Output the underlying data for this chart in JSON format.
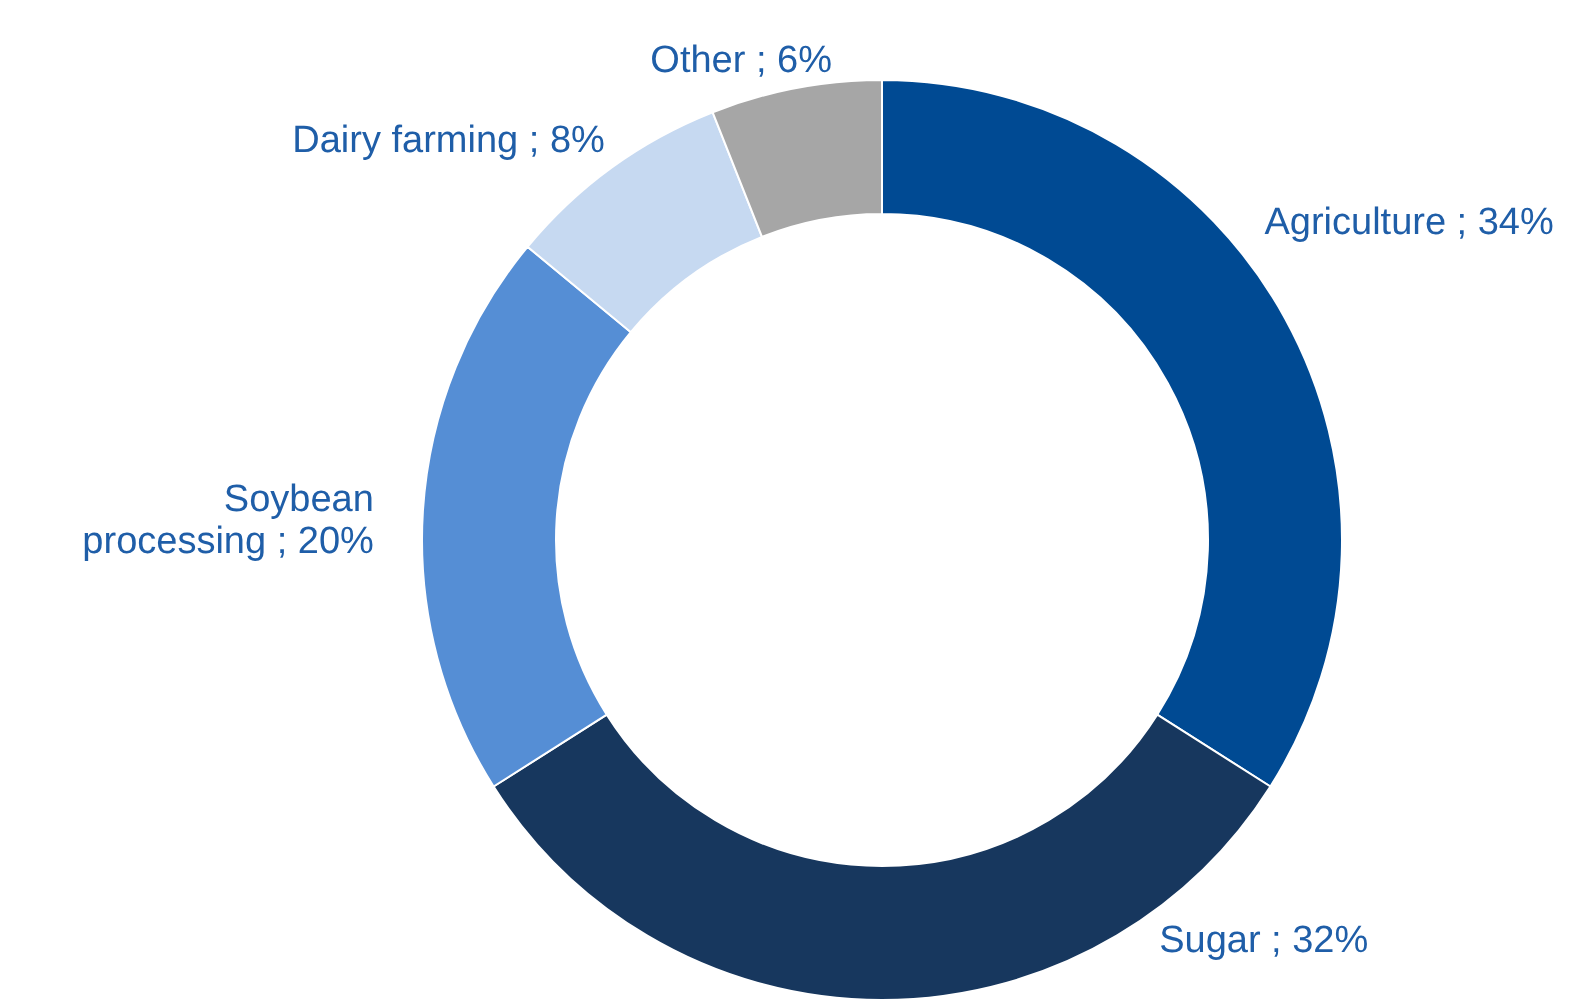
{
  "chart_data": {
    "type": "donut",
    "categories": [
      "Agriculture",
      "Sugar",
      "Soybean processing",
      "Dairy farming",
      "Other"
    ],
    "values": [
      34,
      32,
      20,
      8,
      6
    ],
    "colors": [
      "#004a93",
      "#17375e",
      "#558ed5",
      "#c6d9f1",
      "#a6a6a6"
    ],
    "value_labels": [
      "34%",
      "32%",
      "20%",
      "8%",
      "6%"
    ]
  }
}
